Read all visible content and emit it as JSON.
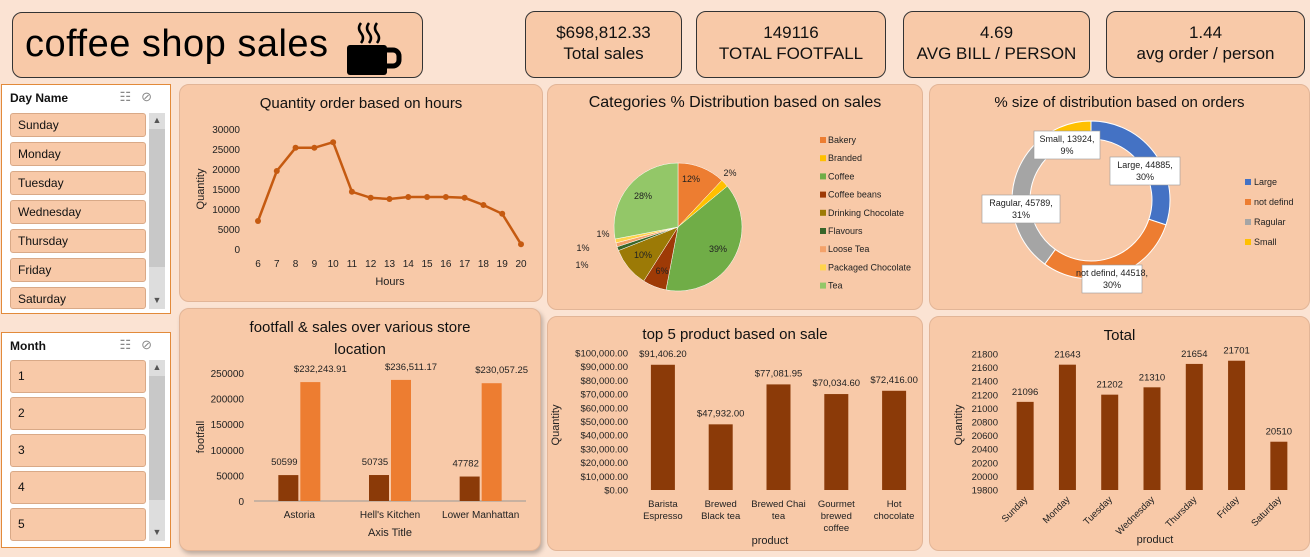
{
  "header": {
    "title": "coffee shop sales",
    "icon": "coffee-cup-icon"
  },
  "kpis": [
    {
      "value": "$698,812.33",
      "label": "Total sales"
    },
    {
      "value": "149116",
      "label": "TOTAL FOOTFALL"
    },
    {
      "value": "4.69",
      "label": "AVG BILL / PERSON"
    },
    {
      "value": "1.44",
      "label": "avg order / person"
    }
  ],
  "slicers": {
    "day": {
      "header": "Day Name",
      "items": [
        "Sunday",
        "Monday",
        "Tuesday",
        "Wednesday",
        "Thursday",
        "Friday",
        "Saturday"
      ]
    },
    "month": {
      "header": "Month",
      "items": [
        "1",
        "2",
        "3",
        "4",
        "5"
      ]
    }
  },
  "colors": {
    "brown": "#8b3a08",
    "orange": "#ed7d31",
    "line": "#c55a11",
    "blue": "#4472c4",
    "gray": "#a5a5a5",
    "green": "#70ad47"
  },
  "chart_data": [
    {
      "type": "line",
      "title": "Quantity order based on hours",
      "xlabel": "Hours",
      "ylabel": "Quantity",
      "x": [
        6,
        7,
        8,
        9,
        10,
        11,
        12,
        13,
        14,
        15,
        16,
        17,
        18,
        19,
        20
      ],
      "values": [
        7000,
        19500,
        25300,
        25300,
        26700,
        14300,
        12800,
        12500,
        13000,
        13000,
        13000,
        12800,
        11000,
        8800,
        1200
      ],
      "ylim": [
        0,
        30000
      ],
      "yticks": [
        0,
        5000,
        10000,
        15000,
        20000,
        25000,
        30000
      ]
    },
    {
      "type": "pie",
      "title": "Categories % Distribution based on sales",
      "slices": [
        {
          "name": "Bakery",
          "value": 12,
          "label": "12%",
          "color": "#ed7d31"
        },
        {
          "name": "Branded",
          "value": 2,
          "label": "2%",
          "color": "#ffc000"
        },
        {
          "name": "Coffee",
          "value": 39,
          "label": "39%",
          "color": "#70ad47"
        },
        {
          "name": "Coffee beans",
          "value": 6,
          "label": "6%",
          "color": "#9e3a06"
        },
        {
          "name": "Drinking Chocolate",
          "value": 10,
          "label": "10%",
          "color": "#9c7a06"
        },
        {
          "name": "Flavours",
          "value": 1,
          "label": "1%",
          "color": "#38662a"
        },
        {
          "name": "Loose Tea",
          "value": 1,
          "label": "1%",
          "color": "#f4a26a"
        },
        {
          "name": "Packaged Chocolate",
          "value": 1,
          "label": "1%",
          "color": "#ffd44d"
        },
        {
          "name": "Tea",
          "value": 28,
          "label": "28%",
          "color": "#93c768"
        }
      ]
    },
    {
      "type": "donut",
      "title": "% size of distribution based on orders",
      "slices": [
        {
          "name": "Large",
          "value": 44885,
          "label": "Large, 44885, 30%",
          "color": "#4472c4"
        },
        {
          "name": "not defind",
          "value": 44518,
          "label": "not defind, 44518, 30%",
          "color": "#ed7d31"
        },
        {
          "name": "Ragular",
          "value": 45789,
          "label": "Ragular, 45789, 31%",
          "color": "#a5a5a5"
        },
        {
          "name": "Small",
          "value": 13924,
          "label": "Small, 13924, 9%",
          "color": "#ffc000"
        }
      ],
      "legend": [
        "Large",
        "not defind",
        "Ragular",
        "Small"
      ]
    },
    {
      "type": "bar",
      "title": "footfall & sales over various store location",
      "xlabel": "Axis Title",
      "ylabel": "footfall",
      "categories": [
        "Astoria",
        "Hell's Kitchen",
        "Lower Manhattan"
      ],
      "series": [
        {
          "values": [
            50599,
            50735,
            47782
          ],
          "labels": [
            "50599",
            "50735",
            "47782"
          ],
          "color": "#8b3a08"
        },
        {
          "values": [
            232243.91,
            236511.17,
            230057.25
          ],
          "labels": [
            "$232,243.91",
            "$236,511.17",
            "$230,057.25"
          ],
          "color": "#ed7d31"
        }
      ],
      "ylim": [
        0,
        250000
      ],
      "yticks": [
        "0",
        "50000",
        "100000",
        "150000",
        "200000",
        "250000"
      ]
    },
    {
      "type": "bar",
      "title": "top 5 product based on sale",
      "xlabel": "product",
      "ylabel": "Quantity",
      "categories": [
        "Barista Espresso",
        "Brewed Black tea",
        "Brewed Chai tea",
        "Gourmet brewed coffee",
        "Hot chocolate"
      ],
      "category_lines": [
        [
          "Barista",
          "Espresso"
        ],
        [
          "Brewed",
          "Black tea"
        ],
        [
          "Brewed Chai",
          "tea"
        ],
        [
          "Gourmet",
          "brewed",
          "coffee"
        ],
        [
          "Hot",
          "chocolate"
        ]
      ],
      "values": [
        91406.2,
        47932.0,
        77081.95,
        70034.6,
        72416.0
      ],
      "labels": [
        "$91,406.20",
        "$47,932.00",
        "$77,081.95",
        "$70,034.60",
        "$72,416.00"
      ],
      "ylim": [
        0,
        100000
      ],
      "yticks": [
        "$0.00",
        "$10,000.00",
        "$20,000.00",
        "$30,000.00",
        "$40,000.00",
        "$50,000.00",
        "$60,000.00",
        "$70,000.00",
        "$80,000.00",
        "$90,000.00",
        "$100,000.00"
      ]
    },
    {
      "type": "bar",
      "title": "Total",
      "xlabel": "product",
      "ylabel": "Quantity",
      "categories": [
        "Sunday",
        "Monday",
        "Tuesday",
        "Wednesday",
        "Thursday",
        "Friday",
        "Saturday"
      ],
      "values": [
        21096,
        21643,
        21202,
        21310,
        21654,
        21701,
        20510
      ],
      "labels": [
        "21096",
        "21643",
        "21202",
        "21310",
        "21654",
        "21701",
        "20510"
      ],
      "ylim": [
        19800,
        21800
      ],
      "yticks": [
        "19800",
        "20000",
        "20200",
        "20400",
        "20600",
        "20800",
        "21000",
        "21200",
        "21400",
        "21600",
        "21800"
      ]
    }
  ]
}
